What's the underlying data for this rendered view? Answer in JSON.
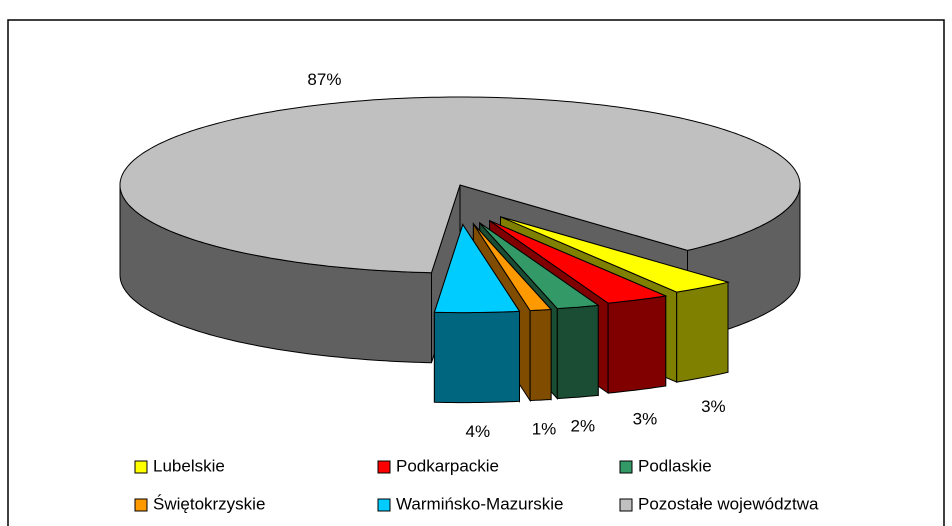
{
  "chart_data": {
    "type": "pie3d",
    "categories": [
      "Lubelskie",
      "Podkarpackie",
      "Podlaskie",
      "Świętokrzyskie",
      "Warmińsko-Mazurskie",
      "Pozostałe województwa"
    ],
    "values": [
      3,
      3,
      2,
      1,
      4,
      87
    ],
    "value_labels": [
      "3%",
      "3%",
      "2%",
      "1%",
      "4%",
      "87%"
    ],
    "colors": [
      "#ffff00",
      "#ff0000",
      "#339966",
      "#ff9900",
      "#00ccff",
      "#c0c0c0"
    ],
    "exploded": [
      "Lubelskie",
      "Podkarpackie",
      "Podlaskie",
      "Świętokrzyskie",
      "Warmińsko-Mazurskie"
    ],
    "legend": "bottom"
  }
}
